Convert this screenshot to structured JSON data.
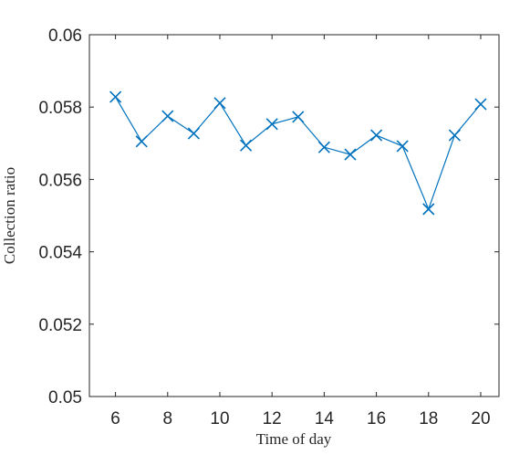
{
  "chart_data": {
    "type": "line",
    "x_label": "Time of day",
    "y_label": "Collection ratio",
    "x": [
      6,
      7,
      8,
      9,
      10,
      11,
      12,
      13,
      14,
      15,
      16,
      17,
      18,
      19,
      20
    ],
    "series": [
      {
        "color": "#0072bd",
        "marker": "x",
        "values": [
          0.05828,
          0.05705,
          0.05775,
          0.05727,
          0.05811,
          0.05694,
          0.05753,
          0.05773,
          0.05689,
          0.05669,
          0.05722,
          0.05692,
          0.05518,
          0.05722,
          0.05808
        ]
      }
    ],
    "xlim": [
      5,
      20.7
    ],
    "ylim": [
      0.05,
      0.06
    ],
    "xticks": [
      6,
      8,
      10,
      12,
      14,
      16,
      18,
      20
    ],
    "yticks": [
      0.05,
      0.052,
      0.054,
      0.056,
      0.058,
      0.06
    ],
    "grid": false
  }
}
